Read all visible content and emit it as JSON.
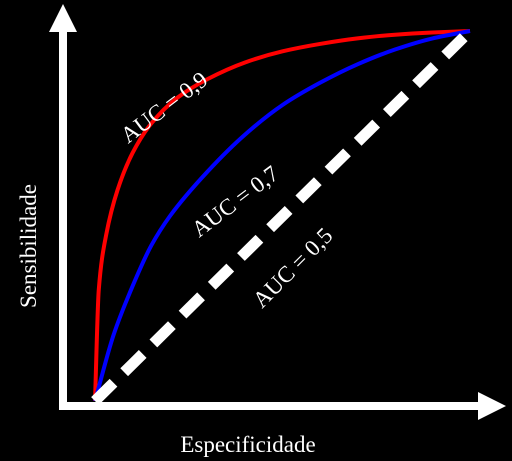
{
  "chart_data": {
    "type": "line",
    "title": "",
    "xlabel": "Especificidade",
    "ylabel": "Sensibilidade",
    "xlim": [
      0,
      1
    ],
    "ylim": [
      0,
      1
    ],
    "grid": false,
    "background": "#000000",
    "axis_color": "#ffffff",
    "series": [
      {
        "name": "AUC = 0,9",
        "color": "#ff0000",
        "style": "solid",
        "x": [
          0,
          0.01,
          0.03,
          0.06,
          0.1,
          0.15,
          0.22,
          0.3,
          0.4,
          0.5,
          0.6,
          0.7,
          0.8,
          0.9,
          1
        ],
        "y": [
          0,
          0.3,
          0.45,
          0.57,
          0.67,
          0.75,
          0.82,
          0.87,
          0.915,
          0.945,
          0.965,
          0.98,
          0.99,
          0.996,
          1
        ]
      },
      {
        "name": "AUC = 0,7",
        "color": "#0000ff",
        "style": "solid",
        "x": [
          0,
          0.05,
          0.1,
          0.15,
          0.2,
          0.3,
          0.4,
          0.5,
          0.6,
          0.7,
          0.8,
          0.9,
          1
        ],
        "y": [
          0,
          0.18,
          0.31,
          0.42,
          0.5,
          0.62,
          0.72,
          0.8,
          0.86,
          0.91,
          0.95,
          0.98,
          1
        ]
      },
      {
        "name": "AUC = 0,5",
        "color": "#ffffff",
        "style": "dashed",
        "x": [
          0,
          1
        ],
        "y": [
          0,
          1
        ]
      }
    ]
  }
}
